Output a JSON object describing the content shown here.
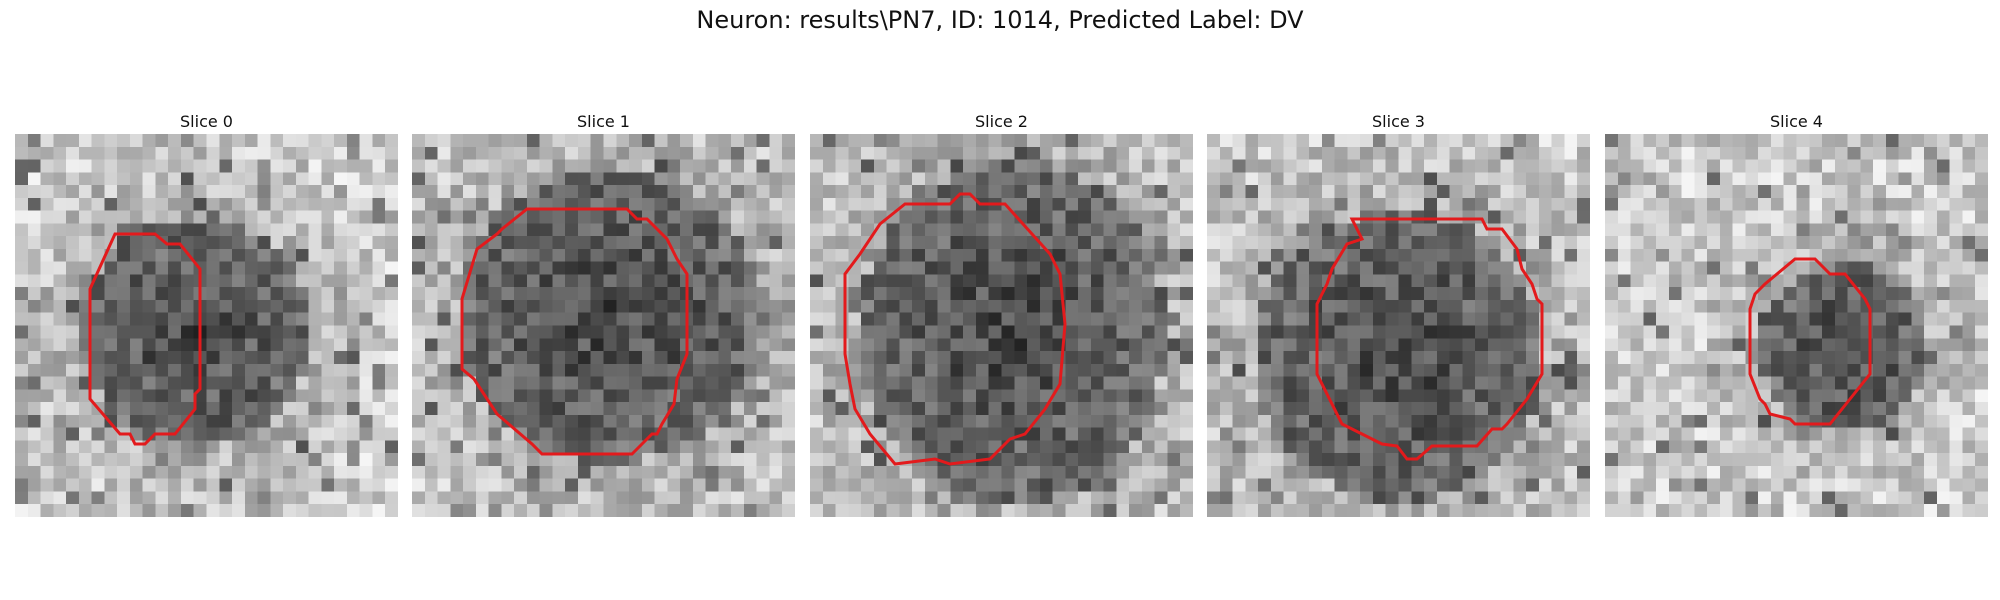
{
  "figure": {
    "title": "Neuron: results\\PN7, ID: 1014, Predicted Label: DV",
    "contour_color": "#e31a1c",
    "colormap": "grayscale"
  },
  "slices": [
    {
      "label": "Slice 0"
    },
    {
      "label": "Slice 1"
    },
    {
      "label": "Slice 2"
    },
    {
      "label": "Slice 3"
    },
    {
      "label": "Slice 4"
    }
  ]
}
